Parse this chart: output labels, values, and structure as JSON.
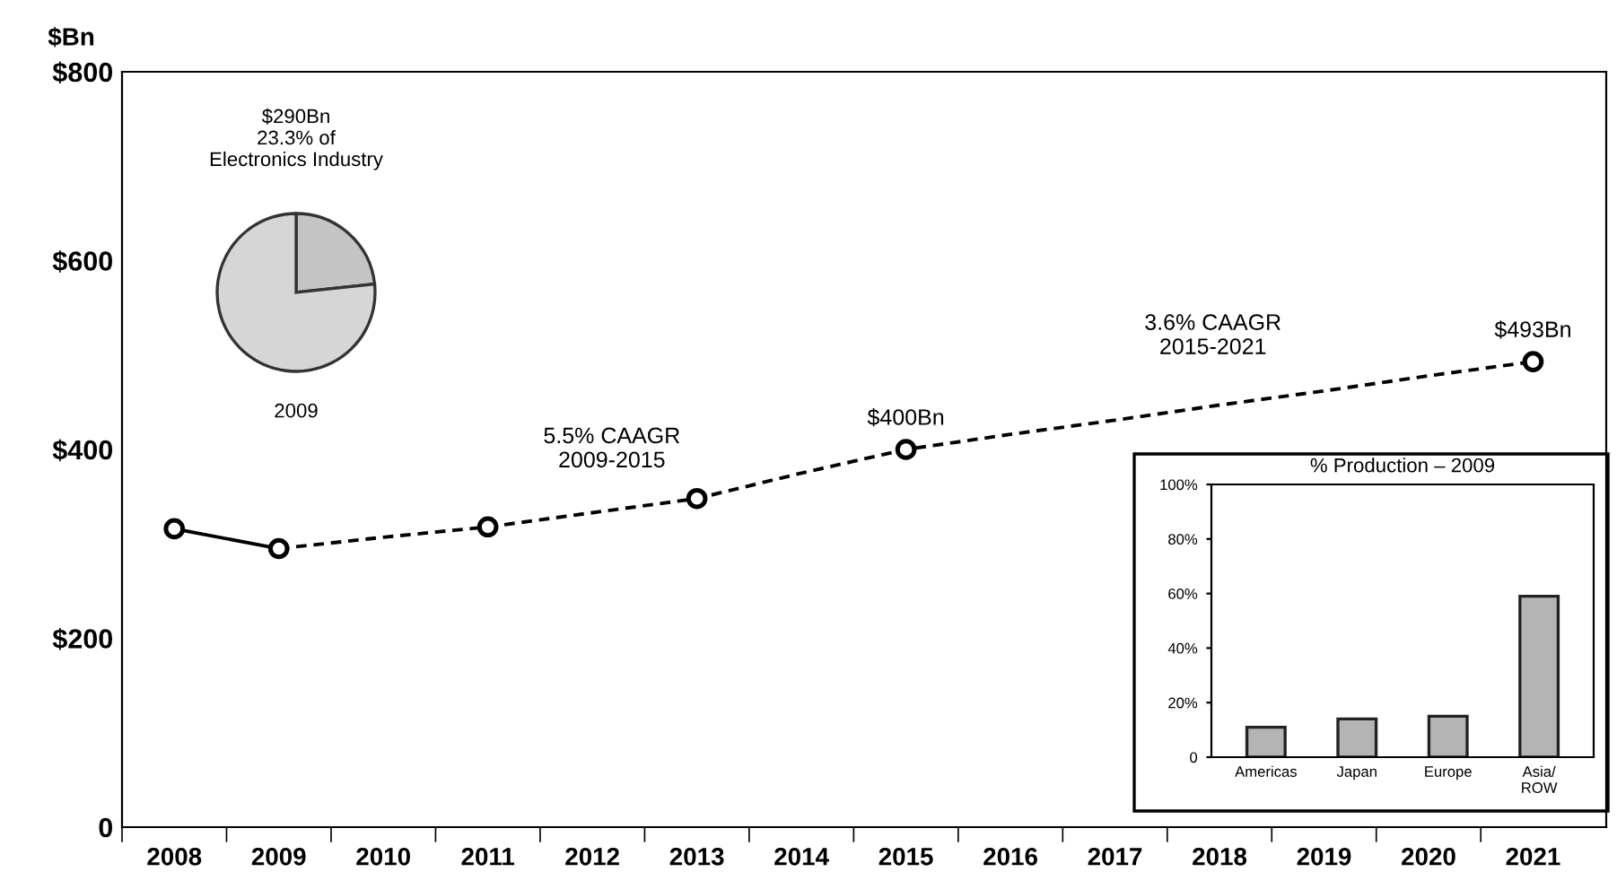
{
  "chart_data": [
    {
      "type": "line",
      "ylabel": "$Bn",
      "categories": [
        "2008",
        "2009",
        "2010",
        "2011",
        "2012",
        "2013",
        "2014",
        "2015",
        "2016",
        "2017",
        "2018",
        "2019",
        "2020",
        "2021"
      ],
      "series": [
        {
          "type": "line",
          "color": "#000000",
          "line_style": "solid",
          "values": [
            316,
            295,
            null,
            null,
            null,
            null,
            null,
            null,
            null,
            null,
            null,
            null,
            null,
            null
          ]
        },
        {
          "type": "line",
          "color": "#000000",
          "line_style": "dashed",
          "values": [
            null,
            295,
            307,
            318,
            333,
            348,
            375,
            400,
            416,
            431,
            447,
            462,
            478,
            493
          ]
        },
        {
          "type": "scatter",
          "color": "#000000",
          "marker": "circle",
          "values": [
            316,
            295,
            null,
            318,
            null,
            348,
            null,
            400,
            null,
            null,
            null,
            null,
            null,
            493
          ]
        }
      ],
      "ylim": [
        0,
        800
      ],
      "yticks": [
        {
          "value": 0,
          "label": "0"
        },
        {
          "value": 200,
          "label": "$200"
        },
        {
          "value": 400,
          "label": "$400"
        },
        {
          "value": 600,
          "label": "$600"
        },
        {
          "value": 800,
          "label": "$800"
        }
      ],
      "grid": false,
      "annotations": [
        "5.5% CAAGR\n2009-2015",
        "3.6% CAAGR\n2015-2021",
        {
          "text": "$400Bn",
          "x": "2015",
          "y": 400
        },
        {
          "text": "$493Bn",
          "x": "2021",
          "y": 493
        }
      ]
    },
    {
      "type": "pie",
      "title": "$290Bn\n23.3% of\nElectronics Industry",
      "categories": [
        null,
        null
      ],
      "values": [
        23.3,
        76.7
      ],
      "colors": [
        "#c4c4c4",
        "#d6d6d6"
      ],
      "annotations": [
        "2009"
      ]
    },
    {
      "type": "bar",
      "title": "% Production – 2009",
      "categories": [
        "Americas",
        "Japan",
        "Europe",
        "Asia/\nROW"
      ],
      "values": [
        11,
        14,
        15,
        59
      ],
      "color": "#b4b4b4",
      "ylim": [
        0,
        100
      ],
      "yticks": [
        {
          "value": 0,
          "label": "0"
        },
        {
          "value": 20,
          "label": "20%"
        },
        {
          "value": 40,
          "label": "40%"
        },
        {
          "value": 60,
          "label": "60%"
        },
        {
          "value": 80,
          "label": "80%"
        },
        {
          "value": 100,
          "label": "100%"
        }
      ],
      "grid": false
    }
  ]
}
